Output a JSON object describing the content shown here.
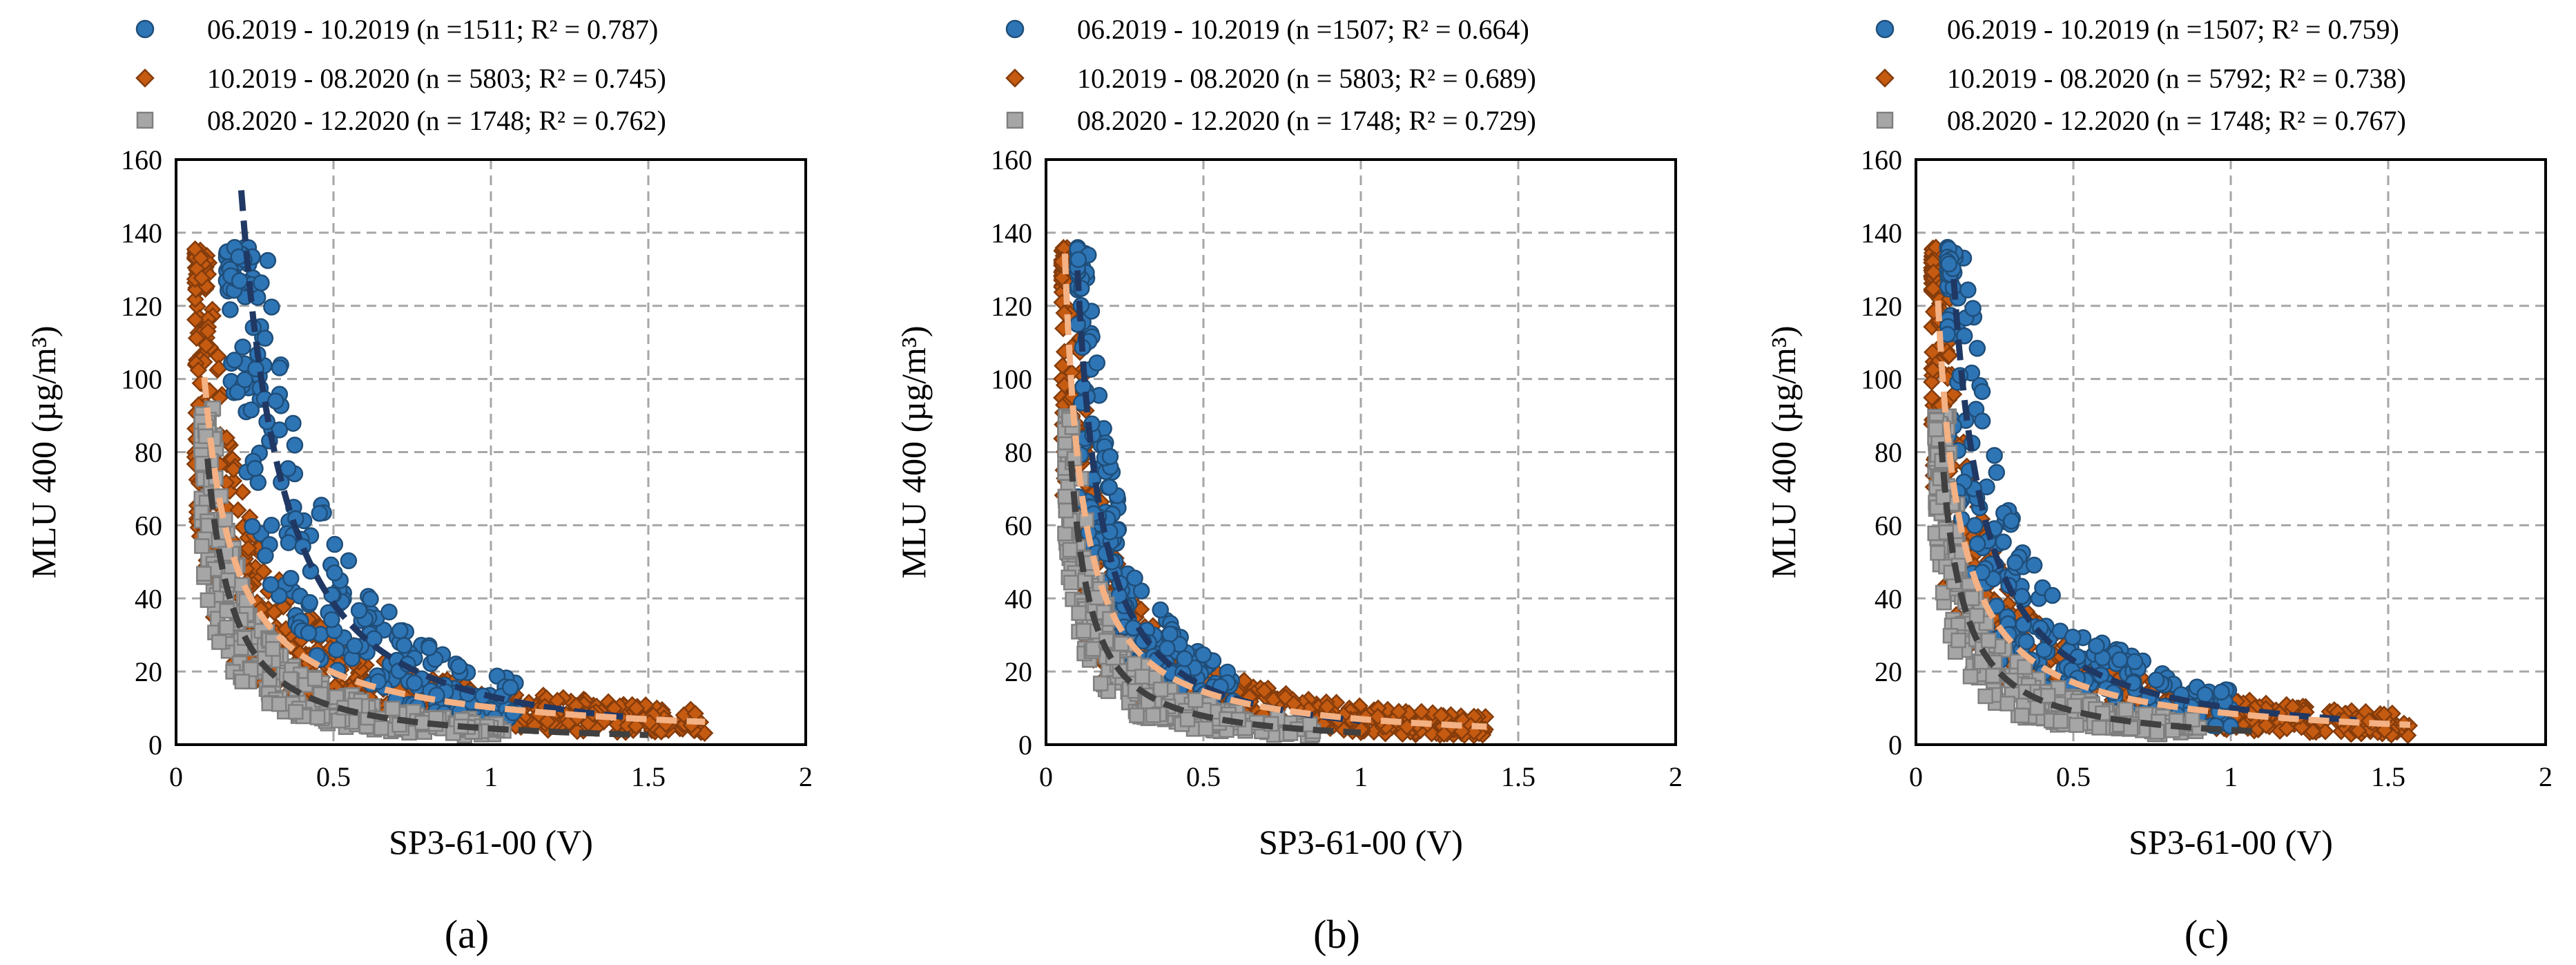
{
  "colors": {
    "blue_fill": "#2e75b6",
    "blue_edge": "#1f4e79",
    "orange_fill": "#c55a11",
    "orange_edge": "#843c0c",
    "gray_fill": "#a6a6a6",
    "gray_edge": "#7f7f7f",
    "blue_fit": "#203864",
    "orange_fit": "#f4b183",
    "gray_fit": "#404040",
    "grid": "#a6a6a6",
    "axis": "#000000"
  },
  "chart_data": [
    {
      "type": "scatter",
      "panel_label": "(a)",
      "xlabel": "SP3-61-00 (V)",
      "ylabel": "MLU 400 (µg/m³)",
      "xlim": [
        0,
        2
      ],
      "ylim": [
        0,
        160
      ],
      "xticks": [
        0,
        0.5,
        1,
        1.5,
        2
      ],
      "xtick_labels": [
        "0",
        "0.5",
        "1",
        "1.5",
        "2"
      ],
      "yticks": [
        0,
        20,
        40,
        60,
        80,
        100,
        120,
        140,
        160
      ],
      "ytick_labels": [
        "0",
        "20",
        "40",
        "60",
        "80",
        "100",
        "120",
        "140",
        "160"
      ],
      "grid": true,
      "legend_position": "top",
      "series": [
        {
          "name": "06.2019 - 10.2019 (n =1511; R² = 0.787)",
          "marker": "circle",
          "color": "blue",
          "fit": {
            "a": 13.2,
            "b": -1.55,
            "x_start": 0.17,
            "x_end": 1.42
          },
          "cloud": {
            "x_min": 0.16,
            "x_max": 1.08,
            "y_max": 136,
            "spread": 0.5,
            "count": 260
          }
        },
        {
          "name": "10.2019 - 08.2020 (n = 5803; R² = 0.745)",
          "marker": "diamond",
          "color": "orange",
          "fit": {
            "a": 10.2,
            "b": -0.95,
            "x_start": 0.09,
            "x_end": 1.68
          },
          "cloud": {
            "x_min": 0.06,
            "x_max": 1.68,
            "y_max": 136,
            "spread": 0.55,
            "count": 620
          }
        },
        {
          "name": "08.2020 - 12.2020 (n = 1748; R² = 0.762)",
          "marker": "square",
          "color": "gray",
          "fit": {
            "a": 4.4,
            "b": -1.25,
            "x_start": 0.1,
            "x_end": 1.5
          },
          "cloud": {
            "x_min": 0.08,
            "x_max": 1.05,
            "y_max": 92,
            "spread": 0.5,
            "count": 300
          }
        }
      ]
    },
    {
      "type": "scatter",
      "panel_label": "(b)",
      "xlabel": "SP3-61-00 (V)",
      "ylabel": "MLU 400 (µg/m³)",
      "xlim": [
        0,
        2
      ],
      "ylim": [
        0,
        160
      ],
      "xticks": [
        0,
        0.5,
        1,
        1.5,
        2
      ],
      "xtick_labels": [
        "0",
        "0.5",
        "1",
        "1.5",
        "2"
      ],
      "yticks": [
        0,
        20,
        40,
        60,
        80,
        100,
        120,
        140,
        160
      ],
      "ytick_labels": [
        "0",
        "20",
        "40",
        "60",
        "80",
        "100",
        "120",
        "140",
        "160"
      ],
      "grid": true,
      "legend_position": "top",
      "series": [
        {
          "name": "06.2019 - 10.2019 (n =1507; R² = 0.664)",
          "marker": "circle",
          "color": "blue",
          "fit": {
            "a": 6.5,
            "b": -1.3,
            "x_start": 0.1,
            "x_end": 1.0
          },
          "cloud": {
            "x_min": 0.1,
            "x_max": 0.6,
            "y_max": 136,
            "spread": 0.55,
            "count": 230
          }
        },
        {
          "name": "10.2019 - 08.2020 (n = 5803; R² = 0.689)",
          "marker": "diamond",
          "color": "orange",
          "fit": {
            "a": 7.0,
            "b": -1.05,
            "x_start": 0.06,
            "x_end": 1.4
          },
          "cloud": {
            "x_min": 0.05,
            "x_max": 1.4,
            "y_max": 136,
            "spread": 0.55,
            "count": 600
          }
        },
        {
          "name": "08.2020 - 12.2020 (n = 1748; R² = 0.729)",
          "marker": "square",
          "color": "gray",
          "fit": {
            "a": 3.3,
            "b": -1.25,
            "x_start": 0.08,
            "x_end": 1.0
          },
          "cloud": {
            "x_min": 0.06,
            "x_max": 0.85,
            "y_max": 90,
            "spread": 0.5,
            "count": 300
          }
        }
      ]
    },
    {
      "type": "scatter",
      "panel_label": "(c)",
      "xlabel": "SP3-61-00 (V)",
      "ylabel": "MLU 400 (µg/m³)",
      "xlim": [
        0,
        2
      ],
      "ylim": [
        0,
        160
      ],
      "xticks": [
        0,
        0.5,
        1,
        1.5,
        2
      ],
      "xtick_labels": [
        "0",
        "0.5",
        "1",
        "1.5",
        "2"
      ],
      "yticks": [
        0,
        20,
        40,
        60,
        80,
        100,
        120,
        140,
        160
      ],
      "ytick_labels": [
        "0",
        "20",
        "40",
        "60",
        "80",
        "100",
        "120",
        "140",
        "160"
      ],
      "grid": true,
      "legend_position": "top",
      "series": [
        {
          "name": "06.2019 - 10.2019 (n =1507; R² = 0.759)",
          "marker": "circle",
          "color": "blue",
          "fit": {
            "a": 10.0,
            "b": -1.2,
            "x_start": 0.12,
            "x_end": 1.4
          },
          "cloud": {
            "x_min": 0.1,
            "x_max": 1.0,
            "y_max": 136,
            "spread": 0.55,
            "count": 250
          }
        },
        {
          "name": "10.2019 - 08.2020 (n = 5792; R² = 0.738)",
          "marker": "diamond",
          "color": "orange",
          "fit": {
            "a": 8.5,
            "b": -1.0,
            "x_start": 0.07,
            "x_end": 1.57
          },
          "cloud": {
            "x_min": 0.05,
            "x_max": 1.57,
            "y_max": 136,
            "spread": 0.55,
            "count": 620
          }
        },
        {
          "name": "08.2020 - 12.2020 (n = 1748; R² = 0.767)",
          "marker": "square",
          "color": "gray",
          "fit": {
            "a": 4.0,
            "b": -1.2,
            "x_start": 0.08,
            "x_end": 1.1
          },
          "cloud": {
            "x_min": 0.06,
            "x_max": 0.9,
            "y_max": 90,
            "spread": 0.5,
            "count": 300
          }
        }
      ]
    }
  ]
}
